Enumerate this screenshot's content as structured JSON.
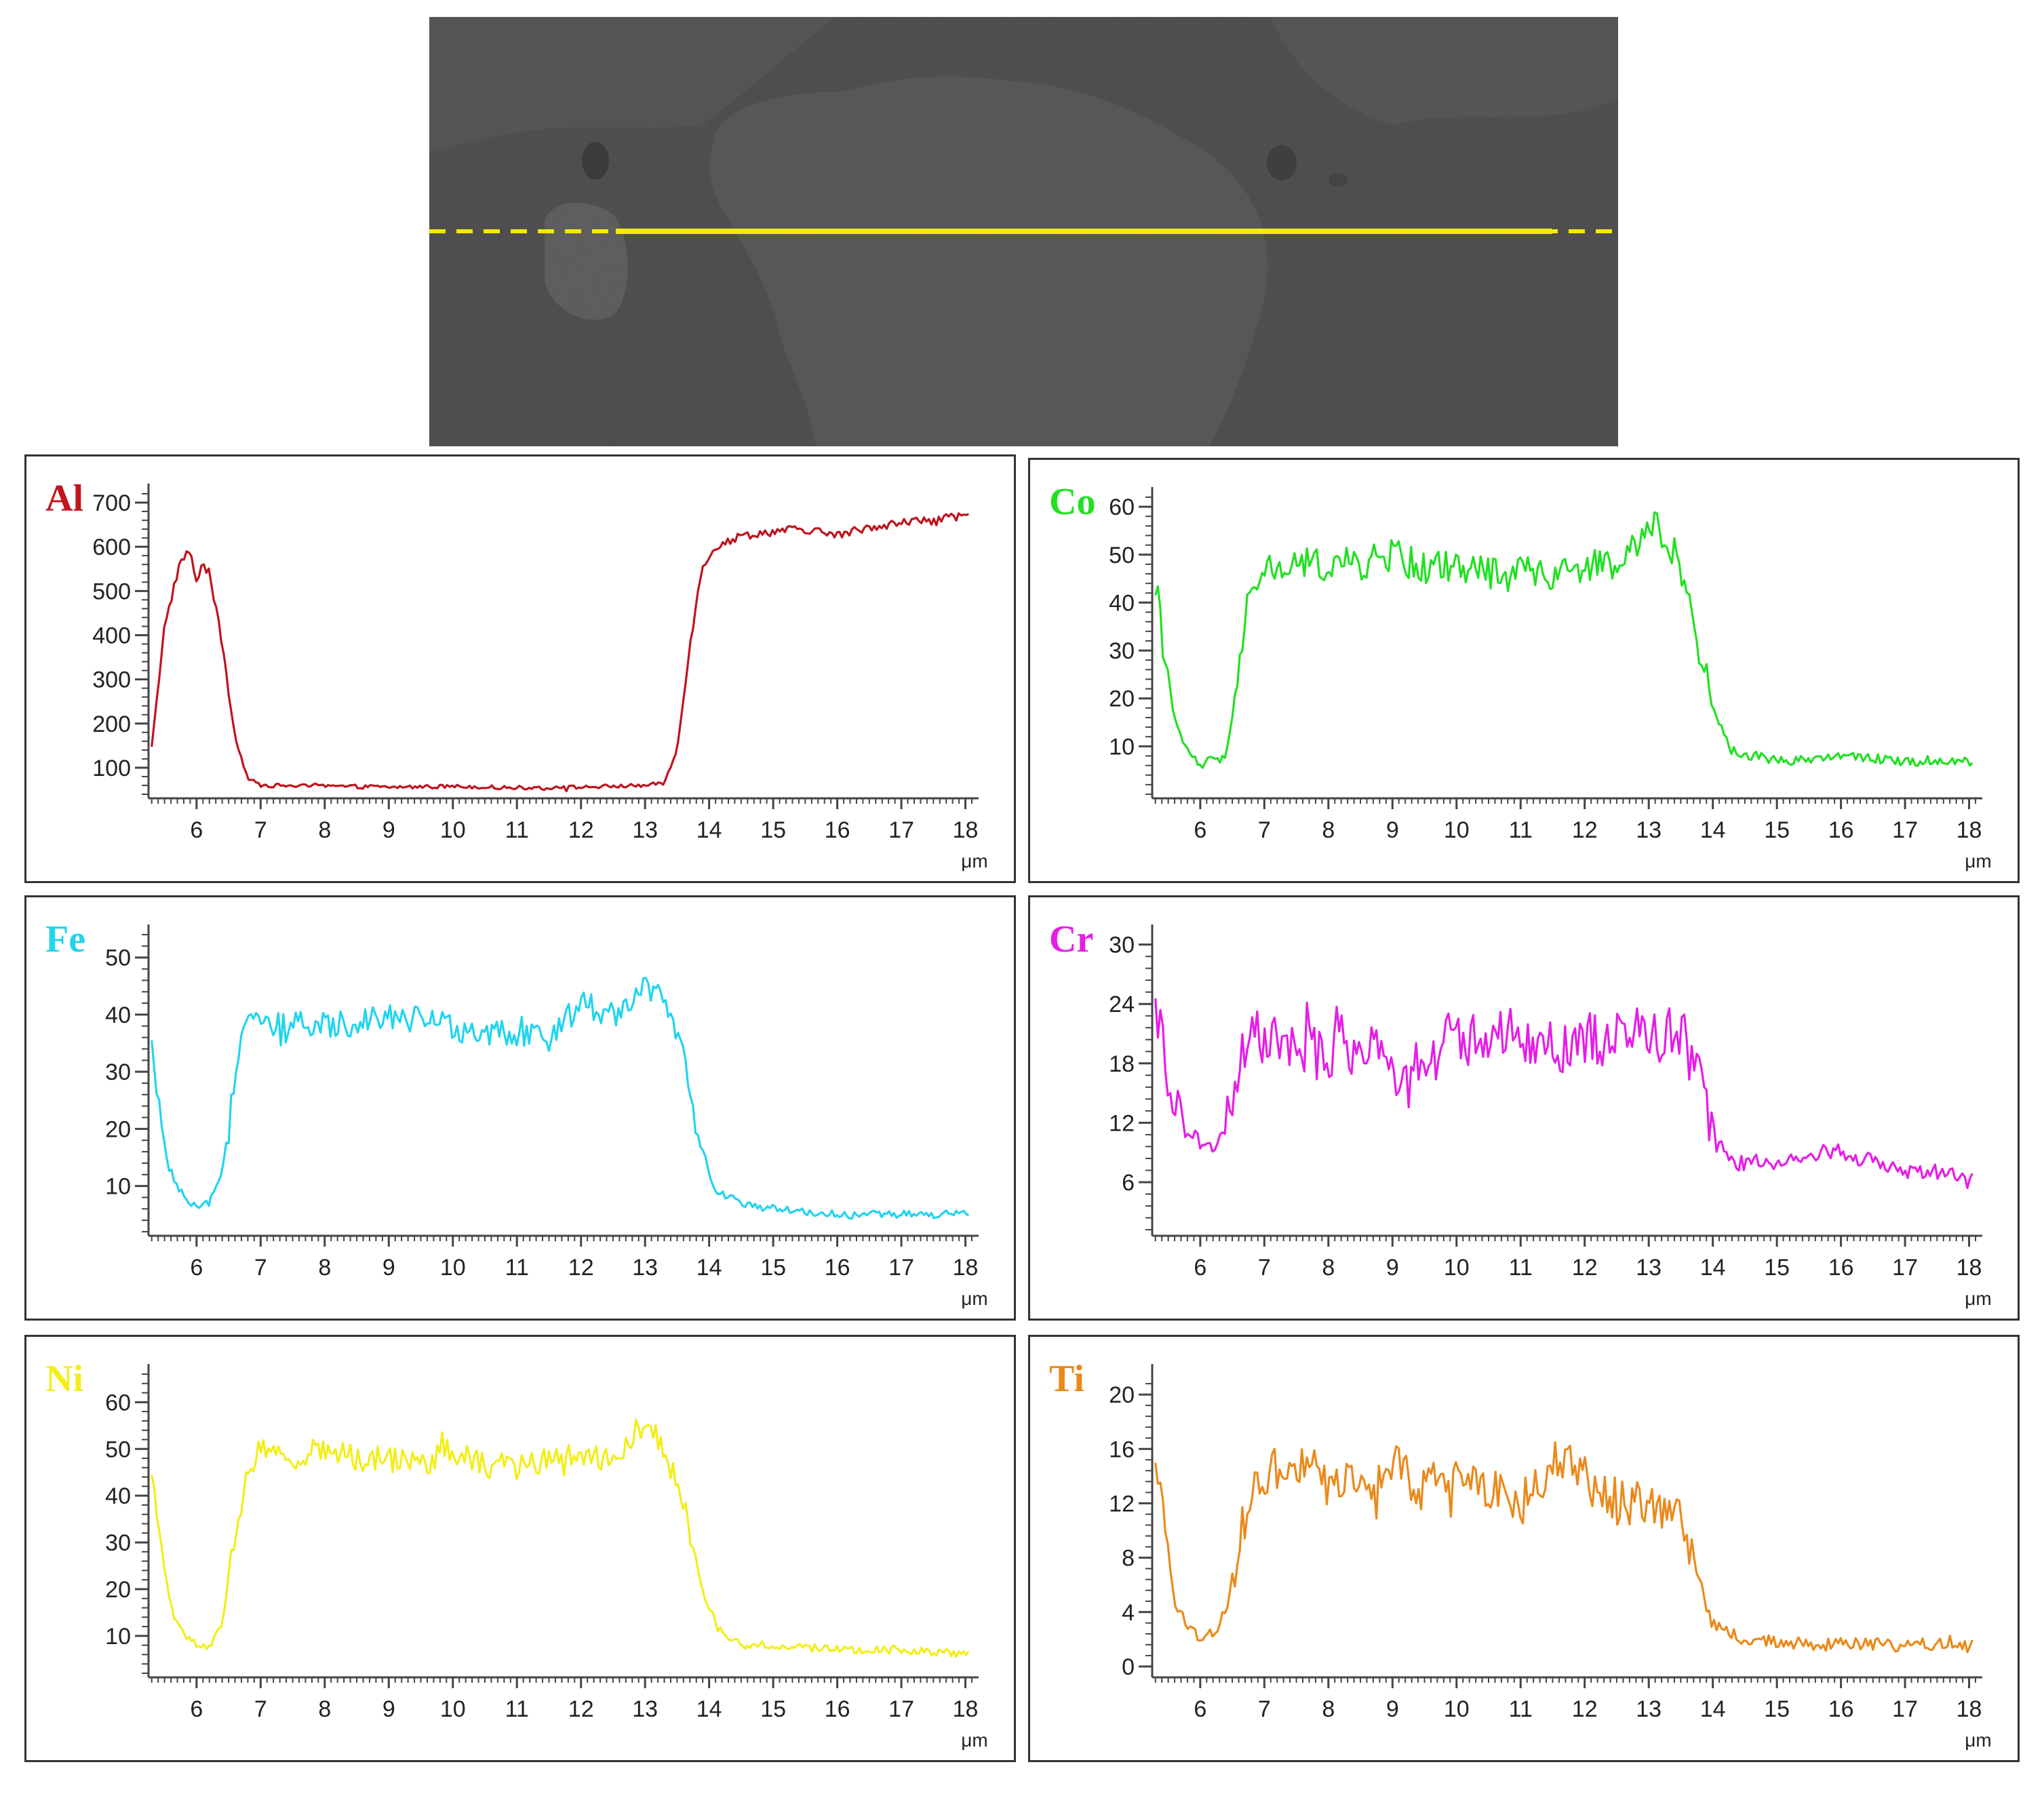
{
  "figure": {
    "sem_image": {
      "description_colors": {
        "background": "#3a3a3a",
        "scan_line": "#f5ea00"
      }
    },
    "colors": {
      "Al": "#c0141e",
      "Co": "#22e022",
      "Fe": "#22d4ee",
      "Cr": "#e61ee6",
      "Ni": "#f2ee1a",
      "Ti": "#ea8a1c"
    }
  },
  "chart_data": [
    {
      "type": "line",
      "element": "Al",
      "color": "#c0141e",
      "xlabel": "μm",
      "xlim": [
        5.25,
        18.1
      ],
      "ylim": [
        40,
        720
      ],
      "xticks": [
        6,
        7,
        8,
        9,
        10,
        11,
        12,
        13,
        14,
        15,
        16,
        17,
        18
      ],
      "yticks": [
        100,
        200,
        300,
        400,
        500,
        600,
        700
      ],
      "profile": [
        [
          5.3,
          150
        ],
        [
          5.5,
          420
        ],
        [
          5.75,
          570
        ],
        [
          5.9,
          590
        ],
        [
          6.0,
          520
        ],
        [
          6.1,
          560
        ],
        [
          6.2,
          540
        ],
        [
          6.4,
          380
        ],
        [
          6.6,
          170
        ],
        [
          6.8,
          75
        ],
        [
          7.0,
          60
        ],
        [
          8.0,
          58
        ],
        [
          9.0,
          56
        ],
        [
          10.0,
          58
        ],
        [
          11.0,
          55
        ],
        [
          12.0,
          56
        ],
        [
          13.0,
          60
        ],
        [
          13.3,
          65
        ],
        [
          13.5,
          140
        ],
        [
          13.7,
          380
        ],
        [
          13.9,
          560
        ],
        [
          14.1,
          600
        ],
        [
          14.5,
          625
        ],
        [
          15.0,
          635
        ],
        [
          15.5,
          640
        ],
        [
          16.0,
          625
        ],
        [
          16.5,
          645
        ],
        [
          17.0,
          655
        ],
        [
          17.5,
          660
        ],
        [
          18.1,
          670
        ]
      ],
      "noise": [
        6,
        14
      ]
    },
    {
      "type": "line",
      "element": "Co",
      "color": "#22e022",
      "xlabel": "μm",
      "xlim": [
        5.25,
        18.1
      ],
      "ylim": [
        0,
        62
      ],
      "xticks": [
        6,
        7,
        8,
        9,
        10,
        11,
        12,
        13,
        14,
        15,
        16,
        17,
        18
      ],
      "yticks": [
        10,
        20,
        30,
        40,
        50,
        60
      ],
      "profile": [
        [
          5.3,
          45
        ],
        [
          5.45,
          28
        ],
        [
          5.6,
          15
        ],
        [
          5.8,
          9
        ],
        [
          6.0,
          6
        ],
        [
          6.2,
          7
        ],
        [
          6.4,
          8
        ],
        [
          6.55,
          20
        ],
        [
          6.75,
          40
        ],
        [
          6.9,
          46
        ],
        [
          7.5,
          48
        ],
        [
          8.5,
          48
        ],
        [
          9.0,
          50
        ],
        [
          9.5,
          47
        ],
        [
          10.0,
          48
        ],
        [
          10.5,
          46
        ],
        [
          11.0,
          47
        ],
        [
          11.5,
          46
        ],
        [
          12.0,
          48
        ],
        [
          12.5,
          47
        ],
        [
          12.9,
          53
        ],
        [
          13.1,
          57
        ],
        [
          13.5,
          48
        ],
        [
          13.8,
          30
        ],
        [
          14.0,
          18
        ],
        [
          14.3,
          9
        ],
        [
          15.0,
          7
        ],
        [
          16.0,
          8
        ],
        [
          17.0,
          7
        ],
        [
          18.1,
          7
        ]
      ],
      "noise": [
        1.5,
        5
      ]
    },
    {
      "type": "line",
      "element": "Fe",
      "color": "#22d4ee",
      "xlabel": "μm",
      "xlim": [
        5.25,
        18.1
      ],
      "ylim": [
        2,
        54
      ],
      "xticks": [
        6,
        7,
        8,
        9,
        10,
        11,
        12,
        13,
        14,
        15,
        16,
        17,
        18
      ],
      "yticks": [
        10,
        20,
        30,
        40,
        50
      ],
      "profile": [
        [
          5.3,
          34
        ],
        [
          5.45,
          20
        ],
        [
          5.6,
          12
        ],
        [
          5.8,
          8
        ],
        [
          6.0,
          6
        ],
        [
          6.2,
          7
        ],
        [
          6.4,
          12
        ],
        [
          6.55,
          26
        ],
        [
          6.75,
          40
        ],
        [
          7.0,
          38
        ],
        [
          8.0,
          38
        ],
        [
          9.0,
          40
        ],
        [
          10.0,
          38
        ],
        [
          10.5,
          37
        ],
        [
          11.0,
          36
        ],
        [
          11.5,
          36
        ],
        [
          12.0,
          42
        ],
        [
          12.5,
          40
        ],
        [
          13.0,
          45
        ],
        [
          13.3,
          42
        ],
        [
          13.6,
          32
        ],
        [
          13.85,
          18
        ],
        [
          14.1,
          9
        ],
        [
          14.5,
          7
        ],
        [
          15.0,
          6
        ],
        [
          16.0,
          5
        ],
        [
          17.0,
          5
        ],
        [
          18.1,
          5
        ]
      ],
      "noise": [
        1.0,
        3.5
      ]
    },
    {
      "type": "line",
      "element": "Cr",
      "color": "#e61ee6",
      "xlabel": "μm",
      "xlim": [
        5.25,
        18.1
      ],
      "ylim": [
        1,
        31
      ],
      "xticks": [
        6,
        7,
        8,
        9,
        10,
        11,
        12,
        13,
        14,
        15,
        16,
        17,
        18
      ],
      "yticks": [
        6,
        12,
        18,
        24,
        30
      ],
      "profile": [
        [
          5.3,
          24
        ],
        [
          5.45,
          19
        ],
        [
          5.6,
          13
        ],
        [
          5.8,
          11
        ],
        [
          6.0,
          10
        ],
        [
          6.2,
          9
        ],
        [
          6.4,
          12
        ],
        [
          6.6,
          18
        ],
        [
          6.85,
          21
        ],
        [
          7.5,
          19
        ],
        [
          8.0,
          19
        ],
        [
          8.5,
          20
        ],
        [
          9.0,
          17
        ],
        [
          9.5,
          19
        ],
        [
          10.0,
          21
        ],
        [
          10.5,
          20
        ],
        [
          11.0,
          21
        ],
        [
          11.5,
          20
        ],
        [
          12.0,
          20
        ],
        [
          12.5,
          21
        ],
        [
          13.0,
          21
        ],
        [
          13.5,
          21
        ],
        [
          13.75,
          17
        ],
        [
          14.0,
          11
        ],
        [
          14.3,
          8
        ],
        [
          15.0,
          8
        ],
        [
          15.5,
          9
        ],
        [
          16.0,
          9
        ],
        [
          16.5,
          8
        ],
        [
          17.0,
          7
        ],
        [
          17.5,
          7
        ],
        [
          18.1,
          6
        ]
      ],
      "noise": [
        1.2,
        4
      ]
    },
    {
      "type": "line",
      "element": "Ni",
      "color": "#f2ee1a",
      "xlabel": "μm",
      "xlim": [
        5.25,
        18.1
      ],
      "ylim": [
        2,
        66
      ],
      "xticks": [
        6,
        7,
        8,
        9,
        10,
        11,
        12,
        13,
        14,
        15,
        16,
        17,
        18
      ],
      "yticks": [
        10,
        20,
        30,
        40,
        50,
        60
      ],
      "profile": [
        [
          5.3,
          45
        ],
        [
          5.45,
          28
        ],
        [
          5.6,
          16
        ],
        [
          5.8,
          10
        ],
        [
          6.0,
          8
        ],
        [
          6.2,
          8
        ],
        [
          6.4,
          12
        ],
        [
          6.55,
          28
        ],
        [
          6.75,
          42
        ],
        [
          7.0,
          50
        ],
        [
          7.5,
          48
        ],
        [
          8.0,
          50
        ],
        [
          8.5,
          48
        ],
        [
          9.0,
          48
        ],
        [
          9.5,
          47
        ],
        [
          10.0,
          50
        ],
        [
          10.5,
          47
        ],
        [
          11.0,
          46
        ],
        [
          11.5,
          48
        ],
        [
          12.0,
          49
        ],
        [
          12.5,
          48
        ],
        [
          13.0,
          56
        ],
        [
          13.3,
          50
        ],
        [
          13.6,
          38
        ],
        [
          13.85,
          22
        ],
        [
          14.1,
          12
        ],
        [
          14.5,
          8
        ],
        [
          15.0,
          8
        ],
        [
          16.0,
          7
        ],
        [
          17.0,
          7
        ],
        [
          18.1,
          6
        ]
      ],
      "noise": [
        1.2,
        4
      ]
    },
    {
      "type": "line",
      "element": "Ti",
      "color": "#ea8a1c",
      "xlabel": "μm",
      "xlim": [
        5.25,
        18.1
      ],
      "ylim": [
        -0.5,
        21.5
      ],
      "xticks": [
        6,
        7,
        8,
        9,
        10,
        11,
        12,
        13,
        14,
        15,
        16,
        17,
        18
      ],
      "yticks": [
        0,
        4,
        8,
        12,
        16,
        20
      ],
      "profile": [
        [
          5.3,
          16
        ],
        [
          5.45,
          9
        ],
        [
          5.6,
          5
        ],
        [
          5.8,
          3
        ],
        [
          6.0,
          2
        ],
        [
          6.2,
          2.5
        ],
        [
          6.4,
          4
        ],
        [
          6.6,
          9
        ],
        [
          6.85,
          14
        ],
        [
          7.5,
          15
        ],
        [
          8.0,
          14
        ],
        [
          8.5,
          13
        ],
        [
          9.0,
          15
        ],
        [
          9.5,
          13
        ],
        [
          10.0,
          14
        ],
        [
          10.5,
          13
        ],
        [
          11.0,
          12
        ],
        [
          11.5,
          15
        ],
        [
          12.0,
          14
        ],
        [
          12.5,
          12
        ],
        [
          13.0,
          12
        ],
        [
          13.5,
          11
        ],
        [
          13.75,
          7
        ],
        [
          14.0,
          3
        ],
        [
          14.5,
          2
        ],
        [
          15.0,
          1.8
        ],
        [
          16.0,
          1.6
        ],
        [
          17.0,
          1.6
        ],
        [
          18.1,
          1.5
        ]
      ],
      "noise": [
        0.7,
        2.4
      ]
    }
  ]
}
